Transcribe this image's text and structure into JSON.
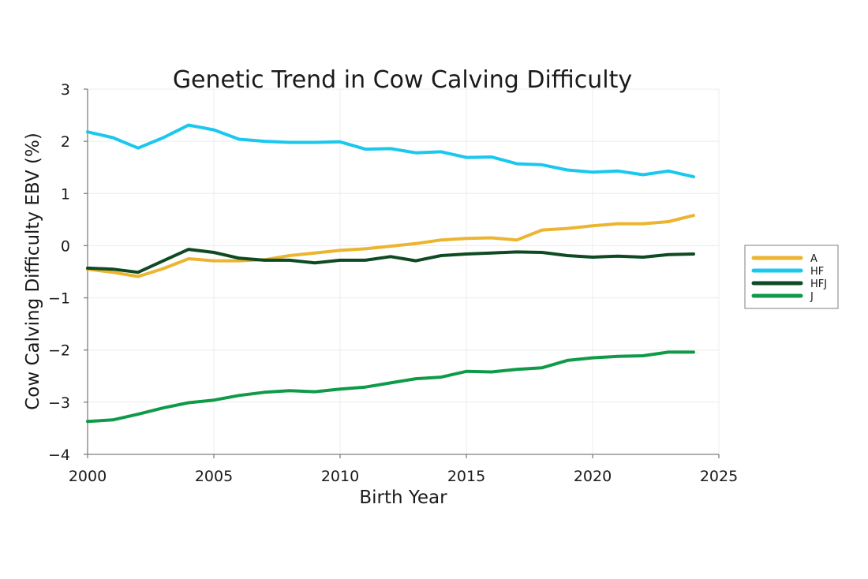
{
  "chart_data": {
    "type": "line",
    "title": "Genetic Trend in Cow Calving Difficulty",
    "xlabel": "Birth Year",
    "ylabel": "Cow Calving Difficulty EBV (%)",
    "xlim": [
      2000,
      2025
    ],
    "ylim": [
      -4,
      3
    ],
    "xticks": [
      2000,
      2005,
      2010,
      2015,
      2020,
      2025
    ],
    "yticks": [
      3,
      2,
      1,
      0,
      -1,
      -2,
      -3,
      -4
    ],
    "ytick_labels": [
      "3",
      "2",
      "1",
      "0",
      "−1",
      "−2",
      "−3",
      "−4"
    ],
    "grid": true,
    "legend_position": "right",
    "x": [
      2000,
      2001,
      2002,
      2003,
      2004,
      2005,
      2006,
      2007,
      2008,
      2009,
      2010,
      2011,
      2012,
      2013,
      2014,
      2015,
      2016,
      2017,
      2018,
      2019,
      2020,
      2021,
      2022,
      2023,
      2024
    ],
    "series": [
      {
        "name": "A",
        "color": "#EBB52F",
        "values": [
          -0.45,
          -0.51,
          -0.59,
          -0.44,
          -0.25,
          -0.29,
          -0.29,
          -0.27,
          -0.19,
          -0.14,
          -0.09,
          -0.06,
          -0.01,
          0.04,
          0.11,
          0.14,
          0.15,
          0.11,
          0.3,
          0.33,
          0.38,
          0.42,
          0.42,
          0.46,
          0.58
        ]
      },
      {
        "name": "HF",
        "color": "#1AC8EE",
        "values": [
          2.18,
          2.07,
          1.87,
          2.07,
          2.31,
          2.22,
          2.04,
          2.0,
          1.98,
          1.98,
          1.99,
          1.85,
          1.86,
          1.78,
          1.8,
          1.69,
          1.7,
          1.57,
          1.55,
          1.45,
          1.41,
          1.43,
          1.36,
          1.43,
          1.32
        ]
      },
      {
        "name": "HFJ",
        "color": "#0E4A22",
        "values": [
          -0.43,
          -0.45,
          -0.51,
          -0.29,
          -0.07,
          -0.13,
          -0.24,
          -0.28,
          -0.28,
          -0.33,
          -0.28,
          -0.28,
          -0.21,
          -0.29,
          -0.19,
          -0.16,
          -0.14,
          -0.12,
          -0.13,
          -0.19,
          -0.22,
          -0.2,
          -0.22,
          -0.17,
          -0.16
        ]
      },
      {
        "name": "J",
        "color": "#0F9A48",
        "values": [
          -3.37,
          -3.34,
          -3.23,
          -3.11,
          -3.01,
          -2.96,
          -2.87,
          -2.81,
          -2.78,
          -2.8,
          -2.75,
          -2.71,
          -2.63,
          -2.55,
          -2.52,
          -2.41,
          -2.42,
          -2.37,
          -2.34,
          -2.2,
          -2.15,
          -2.12,
          -2.11,
          -2.04,
          -2.04
        ]
      }
    ]
  }
}
